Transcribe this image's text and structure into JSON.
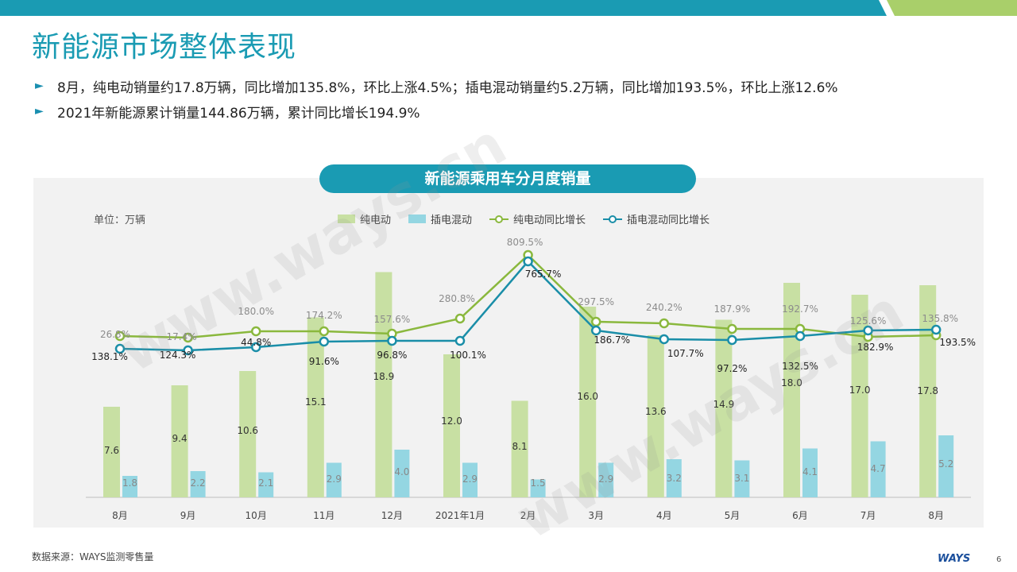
{
  "page": {
    "title": "新能源市场整体表现",
    "bullets": [
      "8月，纯电动销量约17.8万辆，同比增加135.8%，环比上涨4.5%；插电混动销量约5.2万辆，同比增加193.5%，环比上涨12.6%",
      "2021年新能源累计销量144.86万辆，累计同比增长194.9%"
    ],
    "bullet_marker": "►",
    "source": "数据来源：WAYS监测零售量",
    "logo": "WAYS",
    "page_number": "6",
    "watermark": "www.ways.cn"
  },
  "colors": {
    "title": "#1a9bb3",
    "bev_bar": "#c8e0a3",
    "phev_bar": "#94d6e2",
    "bev_line": "#8ab83d",
    "phev_line": "#1a8ea8",
    "topbar_teal": "#1a9bb3",
    "topbar_green": "#a9cf6a"
  },
  "chart_data": {
    "type": "bar",
    "title": "新能源乘用车分月度销量",
    "unit_label": "单位：万辆",
    "categories": [
      "8月",
      "9月",
      "10月",
      "11月",
      "12月",
      "2021年1月",
      "2月",
      "3月",
      "4月",
      "5月",
      "6月",
      "7月",
      "8月"
    ],
    "series": [
      {
        "name": "纯电动",
        "kind": "bar",
        "values": [
          7.6,
          9.4,
          10.6,
          15.1,
          18.9,
          12.0,
          8.1,
          16.0,
          13.6,
          14.9,
          18.0,
          17.0,
          17.8
        ]
      },
      {
        "name": "插电混动",
        "kind": "bar",
        "values": [
          1.8,
          2.2,
          2.1,
          2.9,
          4.0,
          2.9,
          1.5,
          2.9,
          3.2,
          3.1,
          4.1,
          4.7,
          5.2
        ]
      },
      {
        "name": "纯电动同比增长",
        "kind": "line",
        "unit": "%",
        "values": [
          26.8,
          17.4,
          180.0,
          174.2,
          157.6,
          280.8,
          809.5,
          297.5,
          240.2,
          187.9,
          192.7,
          125.6,
          135.8
        ]
      },
      {
        "name": "插电混动同比增长",
        "kind": "line",
        "unit": "%",
        "values": [
          138.1,
          124.3,
          44.8,
          91.6,
          96.8,
          100.1,
          765.7,
          186.7,
          107.7,
          97.2,
          132.5,
          182.9,
          193.5
        ]
      }
    ],
    "legend_position": "top",
    "grid": false
  }
}
